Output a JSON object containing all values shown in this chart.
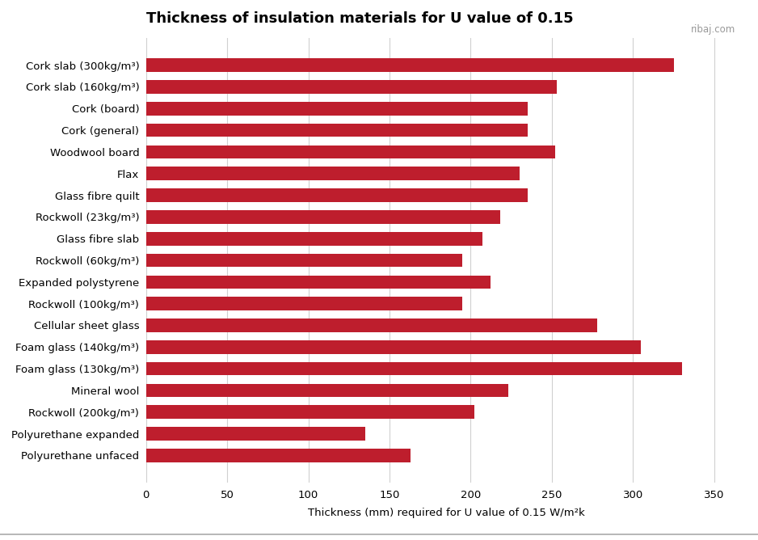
{
  "title": "Thickness of insulation materials for U value of 0.15",
  "xlabel": "Thickness (mm) required for U value of 0.15 W/m²k",
  "watermark": "ribaj.com",
  "categories": [
    "Cork slab (300kg/m³)",
    "Cork slab (160kg/m³)",
    "Cork (board)",
    "Cork (general)",
    "Woodwool board",
    "Flax",
    "Glass fibre quilt",
    "Rockwoll (23kg/m³)",
    "Glass fibre slab",
    "Rockwoll (60kg/m³)",
    "Expanded polystyrene",
    "Rockwoll (100kg/m³)",
    "Cellular sheet glass",
    "Foam glass (140kg/m³)",
    "Foam glass (130kg/m³)",
    "Mineral wool",
    "Rockwoll (200kg/m³)",
    "Polyurethane expanded",
    "Polyurethane unfaced"
  ],
  "values": [
    325,
    253,
    235,
    235,
    252,
    230,
    235,
    218,
    207,
    195,
    212,
    195,
    278,
    305,
    330,
    223,
    202,
    135,
    163
  ],
  "bar_color": "#be1e2d",
  "background_color": "#ffffff",
  "xlim": [
    0,
    370
  ],
  "xticks": [
    0,
    50,
    100,
    150,
    200,
    250,
    300,
    350
  ],
  "title_fontsize": 13,
  "label_fontsize": 9.5,
  "tick_fontsize": 9.5,
  "xlabel_fontsize": 9.5,
  "bar_height": 0.62
}
